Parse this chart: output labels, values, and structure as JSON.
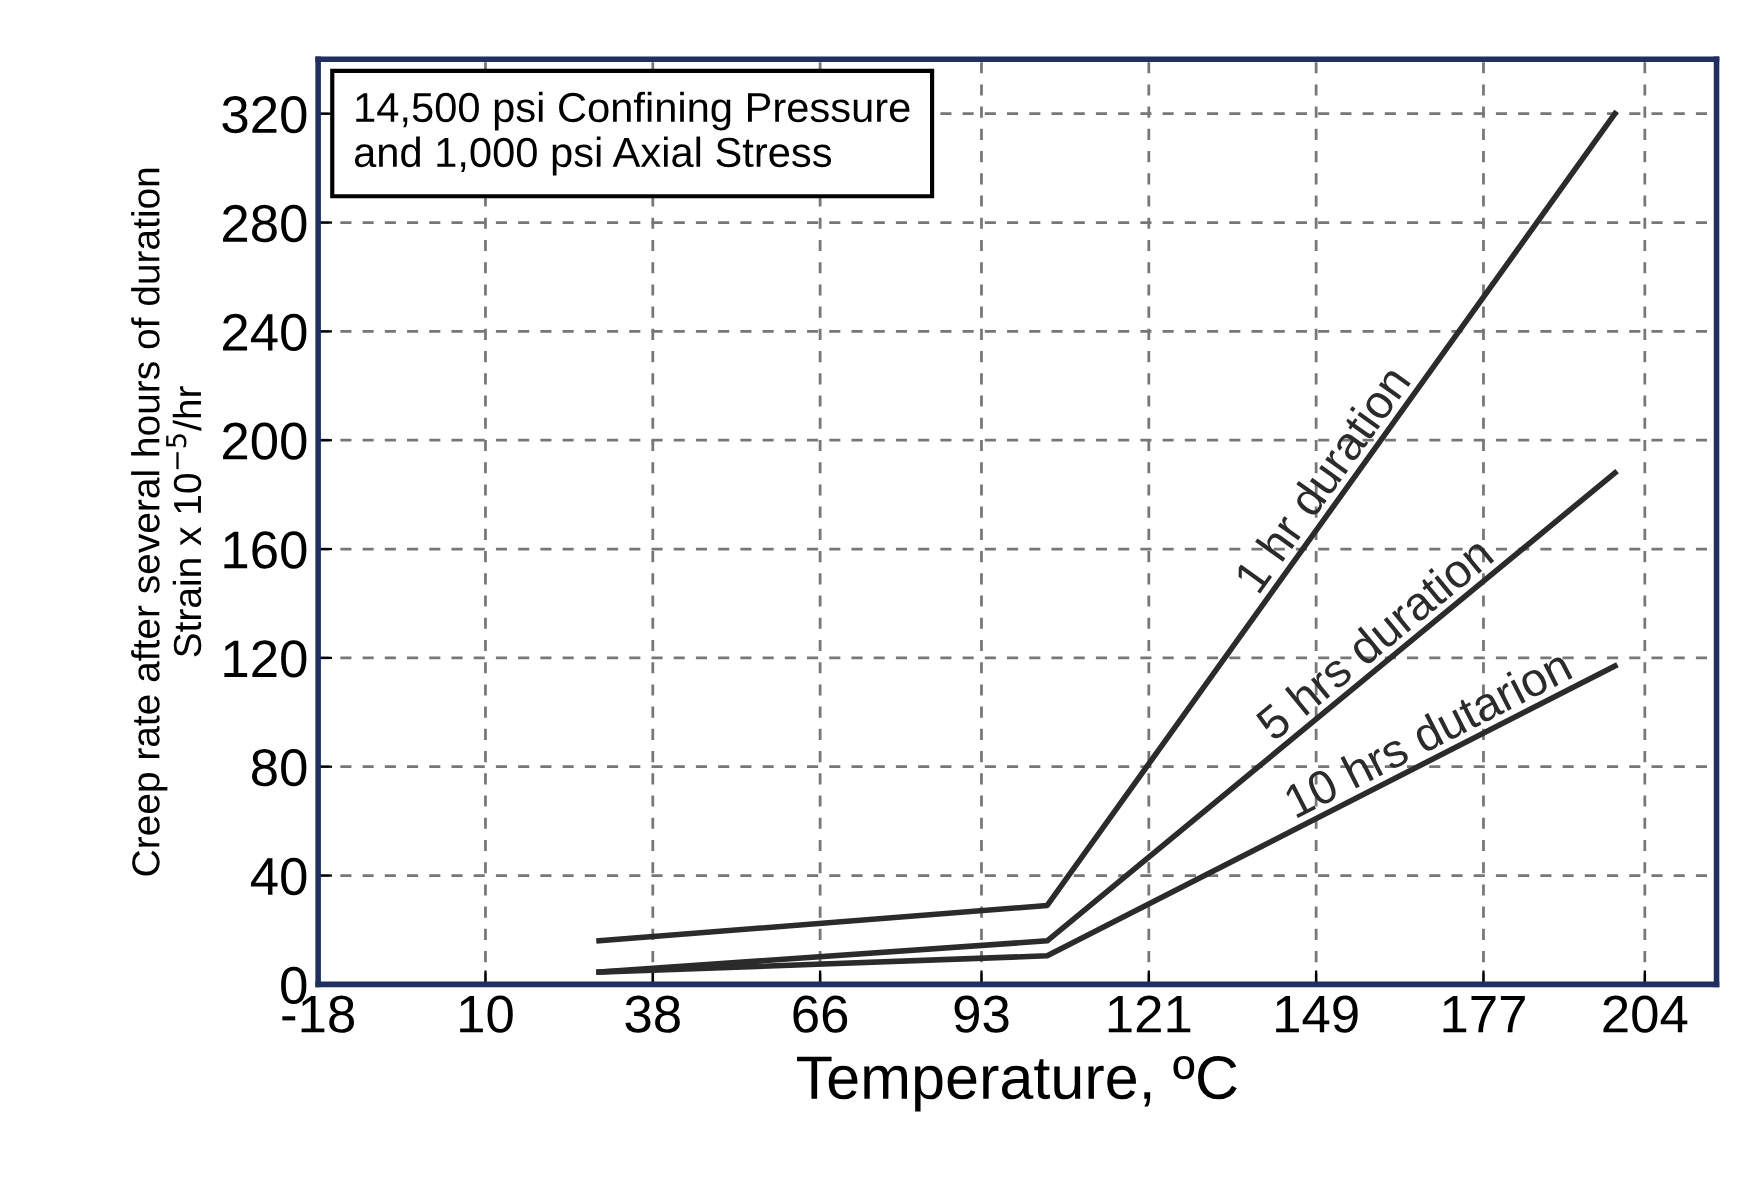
{
  "chart_data": {
    "type": "line",
    "xlabel": "Temperature, ºC",
    "ylabel": "Creep rate after several hours of duration\nStrain x 10$^{−5}$/hr",
    "xlim": [
      -18,
      216
    ],
    "xticks": [
      -18,
      10,
      38,
      66,
      93,
      121,
      149,
      177,
      204
    ],
    "ylim": [
      0,
      340
    ],
    "yticks": [
      0,
      40,
      80,
      120,
      160,
      200,
      240,
      280,
      320
    ],
    "grid": true,
    "legend": false,
    "marker": "none",
    "line_style": "solid",
    "series": [
      {
        "name": "1 hr duration",
        "color": "#2b2b2b",
        "x": [
          29,
          104,
          199
        ],
        "values": [
          16,
          29,
          320
        ]
      },
      {
        "name": "5 hrs duration",
        "color": "#2b2b2b",
        "x": [
          29,
          104,
          199
        ],
        "values": [
          4.5,
          16,
          188
        ]
      },
      {
        "name": "10 hrs dutarion",
        "color": "#2b2b2b",
        "x": [
          29,
          104,
          199
        ],
        "values": [
          4.5,
          10.5,
          117
        ]
      }
    ],
    "annotations": [
      "14,500 psi Confining Pressure\nand 1,000 psi Axial Stress"
    ]
  }
}
